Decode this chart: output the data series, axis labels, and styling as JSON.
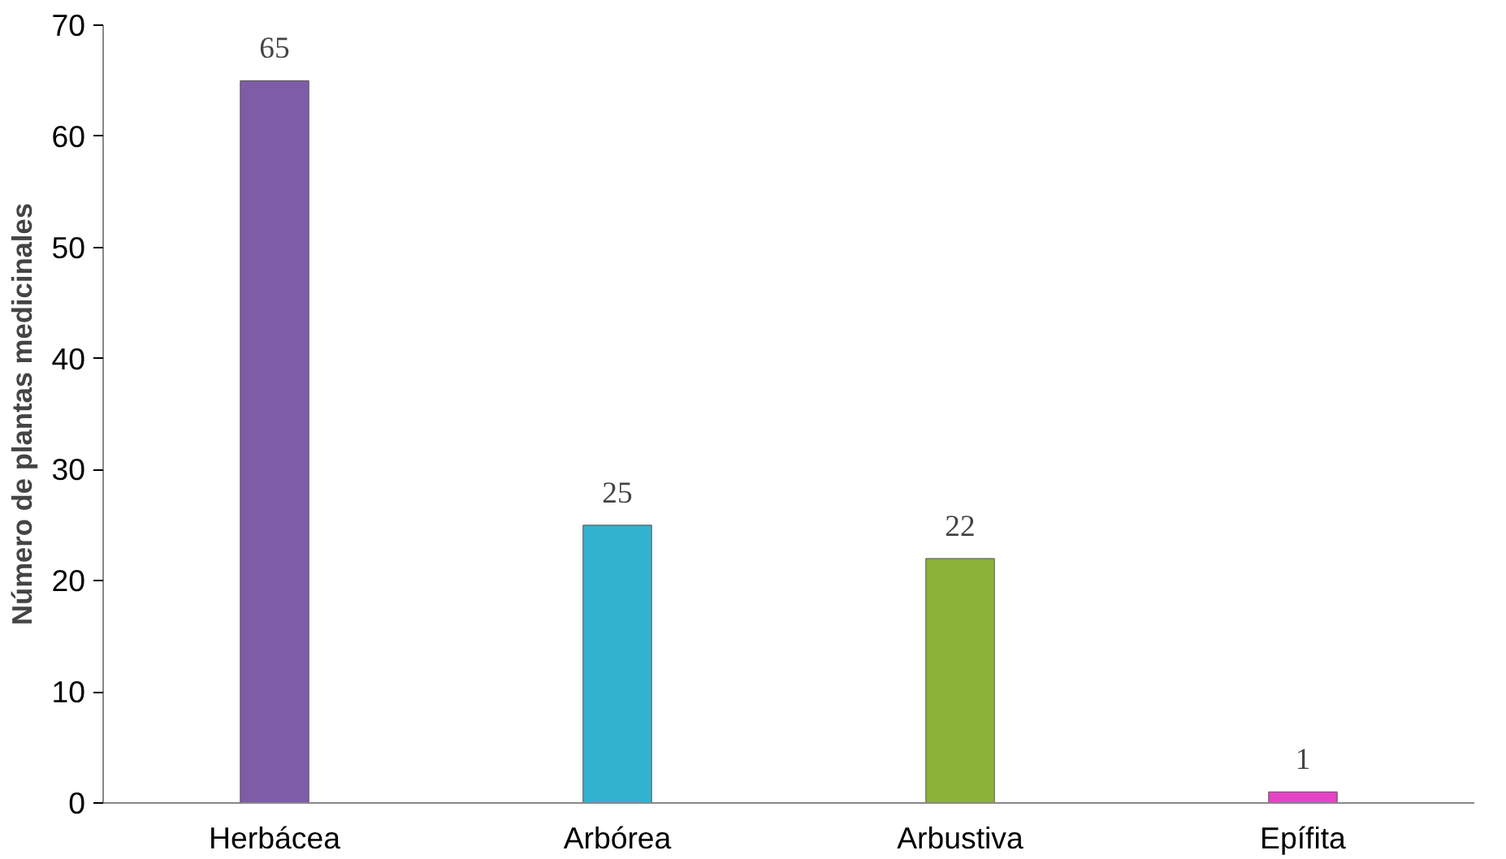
{
  "chart_data": {
    "type": "bar",
    "ylabel": "Número de plantas medicinales",
    "categories": [
      "Herbácea",
      "Arbórea",
      "Arbustiva",
      "Epífita"
    ],
    "values": [
      65,
      25,
      22,
      1
    ],
    "colors": [
      "#7e5ca6",
      "#33b2cf",
      "#8cb23a",
      "#e444c4"
    ],
    "ylim": [
      0,
      70
    ],
    "yticks": [
      0,
      10,
      20,
      30,
      40,
      50,
      60,
      70
    ],
    "grid": false,
    "data_labels": true
  }
}
